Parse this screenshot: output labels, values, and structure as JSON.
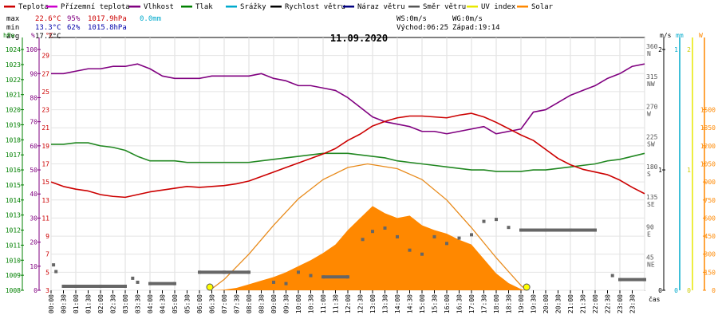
{
  "chart_data": {
    "type": "line",
    "title": "11.09.2020",
    "legend": [
      {
        "label": "Teplota",
        "color": "#cc0000"
      },
      {
        "label": "Přízemní teplota",
        "color": "#cc00cc"
      },
      {
        "label": "Vlhkost",
        "color": "#800080"
      },
      {
        "label": "Tlak",
        "color": "#008000"
      },
      {
        "label": "Srážky",
        "color": "#00aacc"
      },
      {
        "label": "Rychlost větru",
        "color": "#000000"
      },
      {
        "label": "Náraz větru",
        "color": "#000080"
      },
      {
        "label": "Směr větru",
        "color": "#555555"
      },
      {
        "label": "UV index",
        "color": "#e8e800"
      },
      {
        "label": "Solar",
        "color": "#ff8800"
      }
    ],
    "stats": {
      "max": {
        "label": "max",
        "temp": "22.6°C",
        "hum": "95%",
        "press": "1017.9hPa",
        "rain": "0.0mm"
      },
      "min": {
        "label": "min",
        "temp": "13.3°C",
        "hum": "62%",
        "press": "1015.8hPa"
      },
      "avg": {
        "label": "avg",
        "temp": "17.2°C"
      }
    },
    "wind_info": {
      "ws": "WS:0m/s",
      "wg": "WG:0m/s",
      "sunrise": "Východ:06:25",
      "sunset": "Západ:19:14"
    },
    "axis_units": {
      "hpa": "hPa",
      "pct": "%",
      "degc": "°C",
      "ms": "m/s",
      "mm": "mm",
      "w": "W",
      "time": "čas"
    },
    "x_ticks": [
      "00:00",
      "00:30",
      "01:00",
      "01:30",
      "02:00",
      "02:30",
      "03:00",
      "03:30",
      "04:00",
      "04:30",
      "05:00",
      "05:30",
      "06:00",
      "06:30",
      "07:00",
      "07:30",
      "08:00",
      "08:30",
      "09:00",
      "09:30",
      "10:00",
      "10:30",
      "11:00",
      "11:30",
      "12:00",
      "12:30",
      "13:00",
      "13:30",
      "14:00",
      "14:30",
      "15:00",
      "15:30",
      "16:00",
      "16:30",
      "17:00",
      "17:30",
      "18:00",
      "18:30",
      "19:00",
      "19:30",
      "20:00",
      "20:30",
      "21:00",
      "21:30",
      "22:00",
      "22:30",
      "23:00",
      "23:30"
    ],
    "y_pressure": {
      "ticks": [
        1008,
        1009,
        1010,
        1011,
        1012,
        1013,
        1014,
        1015,
        1016,
        1017,
        1018,
        1019,
        1020,
        1021,
        1022,
        1023,
        1024
      ],
      "range": [
        1008,
        1024.8
      ]
    },
    "y_humidity": {
      "ticks": [
        0,
        10,
        20,
        30,
        40,
        50,
        60,
        70,
        80,
        90,
        100
      ],
      "range": [
        0,
        105
      ]
    },
    "y_temp": {
      "ticks": [
        3,
        5,
        7,
        9,
        11,
        13,
        15,
        17,
        19,
        21,
        23,
        25,
        27,
        29
      ],
      "range": [
        3,
        31
      ]
    },
    "y_dir": {
      "ticks": [
        {
          "v": 45,
          "l": "NE"
        },
        {
          "v": 90,
          "l": "E"
        },
        {
          "v": 135,
          "l": "SE"
        },
        {
          "v": 180,
          "l": "S"
        },
        {
          "v": 225,
          "l": "SW"
        },
        {
          "v": 270,
          "l": "W"
        },
        {
          "v": 315,
          "l": "NW"
        },
        {
          "v": 360,
          "l": "N"
        }
      ],
      "range": [
        0,
        378
      ]
    },
    "y_wind": {
      "ticks": [
        0,
        1,
        2
      ],
      "range": [
        0,
        2.1
      ]
    },
    "y_rain": {
      "ticks": [
        0,
        1
      ],
      "range": [
        0,
        1.05
      ]
    },
    "y_uv": {
      "ticks": [
        0,
        1,
        2
      ],
      "range": [
        0,
        2.1
      ]
    },
    "y_solar": {
      "ticks": [
        0,
        150,
        300,
        450,
        600,
        750,
        900,
        1050,
        1200,
        1350,
        1500
      ],
      "range": [
        0,
        2100
      ]
    },
    "series": {
      "temperature": {
        "name": "Teplota",
        "unit": "°C",
        "x": [
          0,
          0.5,
          1,
          1.5,
          2,
          2.5,
          3,
          3.5,
          4,
          4.5,
          5,
          5.5,
          6,
          6.5,
          7,
          7.5,
          8,
          8.5,
          9,
          9.5,
          10,
          10.5,
          11,
          11.5,
          12,
          12.5,
          13,
          13.5,
          14,
          14.5,
          15,
          15.5,
          16,
          16.5,
          17,
          17.5,
          18,
          18.5,
          19,
          19.5,
          20,
          20.5,
          21,
          21.5,
          22,
          22.5,
          23,
          23.5,
          24
        ],
        "y": [
          15,
          14.5,
          14.2,
          14,
          13.6,
          13.4,
          13.3,
          13.6,
          13.9,
          14.1,
          14.3,
          14.5,
          14.4,
          14.5,
          14.6,
          14.8,
          15.1,
          15.6,
          16.1,
          16.6,
          17.1,
          17.6,
          18.1,
          18.7,
          19.6,
          20.3,
          21.2,
          21.7,
          22.1,
          22.3,
          22.3,
          22.2,
          22.1,
          22.4,
          22.6,
          22.2,
          21.6,
          20.9,
          20.2,
          19.6,
          18.6,
          17.6,
          16.9,
          16.4,
          16.1,
          15.8,
          15.2,
          14.4,
          13.7
        ]
      },
      "humidity": {
        "name": "Vlhkost",
        "unit": "%",
        "x": [
          0,
          0.5,
          1,
          1.5,
          2,
          2.5,
          3,
          3.5,
          4,
          4.5,
          5,
          5.5,
          6,
          6.5,
          7,
          7.5,
          8,
          8.5,
          9,
          9.5,
          10,
          10.5,
          11,
          11.5,
          12,
          12.5,
          13,
          13.5,
          14,
          14.5,
          15,
          15.5,
          16,
          16.5,
          17,
          17.5,
          18,
          18.5,
          19,
          19.5,
          20,
          20.5,
          21,
          21.5,
          22,
          22.5,
          23,
          23.5,
          24
        ],
        "y": [
          90,
          90,
          91,
          92,
          92,
          93,
          93,
          94,
          92,
          89,
          88,
          88,
          88,
          89,
          89,
          89,
          89,
          90,
          88,
          87,
          85,
          85,
          84,
          83,
          80,
          76,
          72,
          70,
          69,
          68,
          66,
          66,
          65,
          66,
          67,
          68,
          65,
          66,
          67,
          74,
          75,
          78,
          81,
          83,
          85,
          88,
          90,
          93,
          94
        ]
      },
      "pressure": {
        "name": "Tlak",
        "unit": "hPa",
        "x": [
          0,
          0.5,
          1,
          1.5,
          2,
          2.5,
          3,
          3.5,
          4,
          4.5,
          5,
          5.5,
          6,
          6.5,
          7,
          7.5,
          8,
          8.5,
          9,
          9.5,
          10,
          10.5,
          11,
          11.5,
          12,
          12.5,
          13,
          13.5,
          14,
          14.5,
          15,
          15.5,
          16,
          16.5,
          17,
          17.5,
          18,
          18.5,
          19,
          19.5,
          20,
          20.5,
          21,
          21.5,
          22,
          22.5,
          23,
          23.5,
          24
        ],
        "y": [
          1017.7,
          1017.7,
          1017.8,
          1017.8,
          1017.6,
          1017.5,
          1017.3,
          1016.9,
          1016.6,
          1016.6,
          1016.6,
          1016.5,
          1016.5,
          1016.5,
          1016.5,
          1016.5,
          1016.5,
          1016.6,
          1016.7,
          1016.8,
          1016.9,
          1017,
          1017.1,
          1017.1,
          1017.1,
          1017,
          1016.9,
          1016.8,
          1016.6,
          1016.5,
          1016.4,
          1016.3,
          1016.2,
          1016.1,
          1016,
          1016,
          1015.9,
          1015.9,
          1015.9,
          1016,
          1016,
          1016.1,
          1016.2,
          1016.3,
          1016.4,
          1016.6,
          1016.7,
          1016.9,
          1017.1
        ]
      },
      "solar": {
        "name": "Solar",
        "unit": "W",
        "x": [
          6.5,
          7,
          7.5,
          8,
          8.5,
          9,
          9.5,
          10,
          10.5,
          11,
          11.5,
          12,
          12.5,
          13,
          13.5,
          14,
          14.5,
          15,
          15.5,
          16,
          16.5,
          17,
          17.5,
          18,
          18.5,
          19,
          19.2
        ],
        "y": [
          0,
          5,
          20,
          50,
          80,
          110,
          150,
          200,
          250,
          310,
          380,
          500,
          600,
          700,
          640,
          600,
          620,
          540,
          500,
          470,
          420,
          380,
          260,
          140,
          60,
          10,
          0
        ]
      },
      "solar_theory": {
        "name": "Solar",
        "unit": "W",
        "x": [
          6.42,
          7,
          8,
          9,
          10,
          11,
          12,
          12.8,
          14,
          15,
          16,
          17,
          18,
          19,
          19.23
        ],
        "y": [
          0,
          90,
          300,
          540,
          760,
          920,
          1020,
          1050,
          1010,
          920,
          750,
          520,
          270,
          40,
          0
        ]
      },
      "wind_dir": {
        "name": "Směr větru",
        "unit": "°",
        "points": [
          [
            0.1,
            38
          ],
          [
            0.2,
            28
          ],
          [
            0.5,
            6
          ],
          [
            1,
            6
          ],
          [
            2,
            6
          ],
          [
            3,
            6
          ],
          [
            3.3,
            18
          ],
          [
            3.5,
            12
          ],
          [
            4,
            10
          ],
          [
            5,
            10
          ],
          [
            6,
            27
          ],
          [
            7,
            27
          ],
          [
            8,
            27
          ],
          [
            9,
            12
          ],
          [
            9.5,
            10
          ],
          [
            10,
            27
          ],
          [
            10.5,
            22
          ],
          [
            11,
            20
          ],
          [
            12,
            20
          ],
          [
            12.6,
            76
          ],
          [
            13,
            88
          ],
          [
            13.5,
            93
          ],
          [
            14,
            80
          ],
          [
            14.5,
            60
          ],
          [
            15,
            54
          ],
          [
            15.5,
            80
          ],
          [
            16,
            70
          ],
          [
            16.5,
            78
          ],
          [
            17,
            83
          ],
          [
            17.5,
            103
          ],
          [
            18,
            106
          ],
          [
            18.5,
            94
          ],
          [
            19,
            90
          ],
          [
            20,
            90
          ],
          [
            21,
            90
          ],
          [
            22,
            90
          ],
          [
            22.7,
            22
          ],
          [
            23,
            16
          ],
          [
            24,
            16
          ]
        ]
      },
      "uv_markers": {
        "name": "UV index",
        "x": [
          6.42,
          19.23
        ],
        "y": [
          0,
          0
        ]
      }
    }
  }
}
